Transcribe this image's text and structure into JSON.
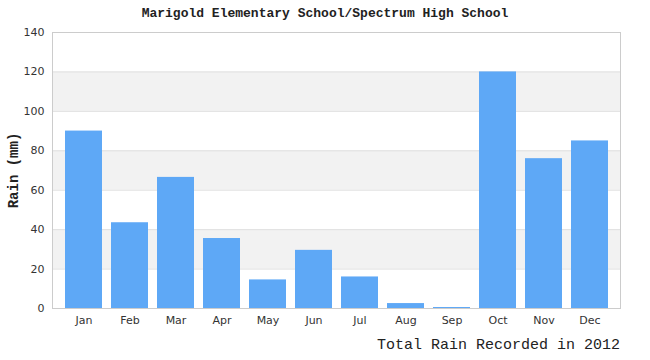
{
  "chart_data": {
    "type": "bar",
    "title": "Marigold Elementary School/Spectrum High School",
    "caption": "Total Rain Recorded in 2012",
    "y_label": "Rain (mm)",
    "categories": [
      "Jan",
      "Feb",
      "Mar",
      "Apr",
      "May",
      "Jun",
      "Jul",
      "Aug",
      "Sep",
      "Oct",
      "Nov",
      "Dec"
    ],
    "values": [
      90,
      43.5,
      66.5,
      35.5,
      14.5,
      29.5,
      16,
      2.5,
      0.5,
      120,
      76,
      85
    ],
    "color": "#5ea8f6",
    "ylim": [
      0,
      140
    ],
    "yticks": [
      0,
      20,
      40,
      60,
      80,
      100,
      120,
      140
    ],
    "grid": true
  }
}
